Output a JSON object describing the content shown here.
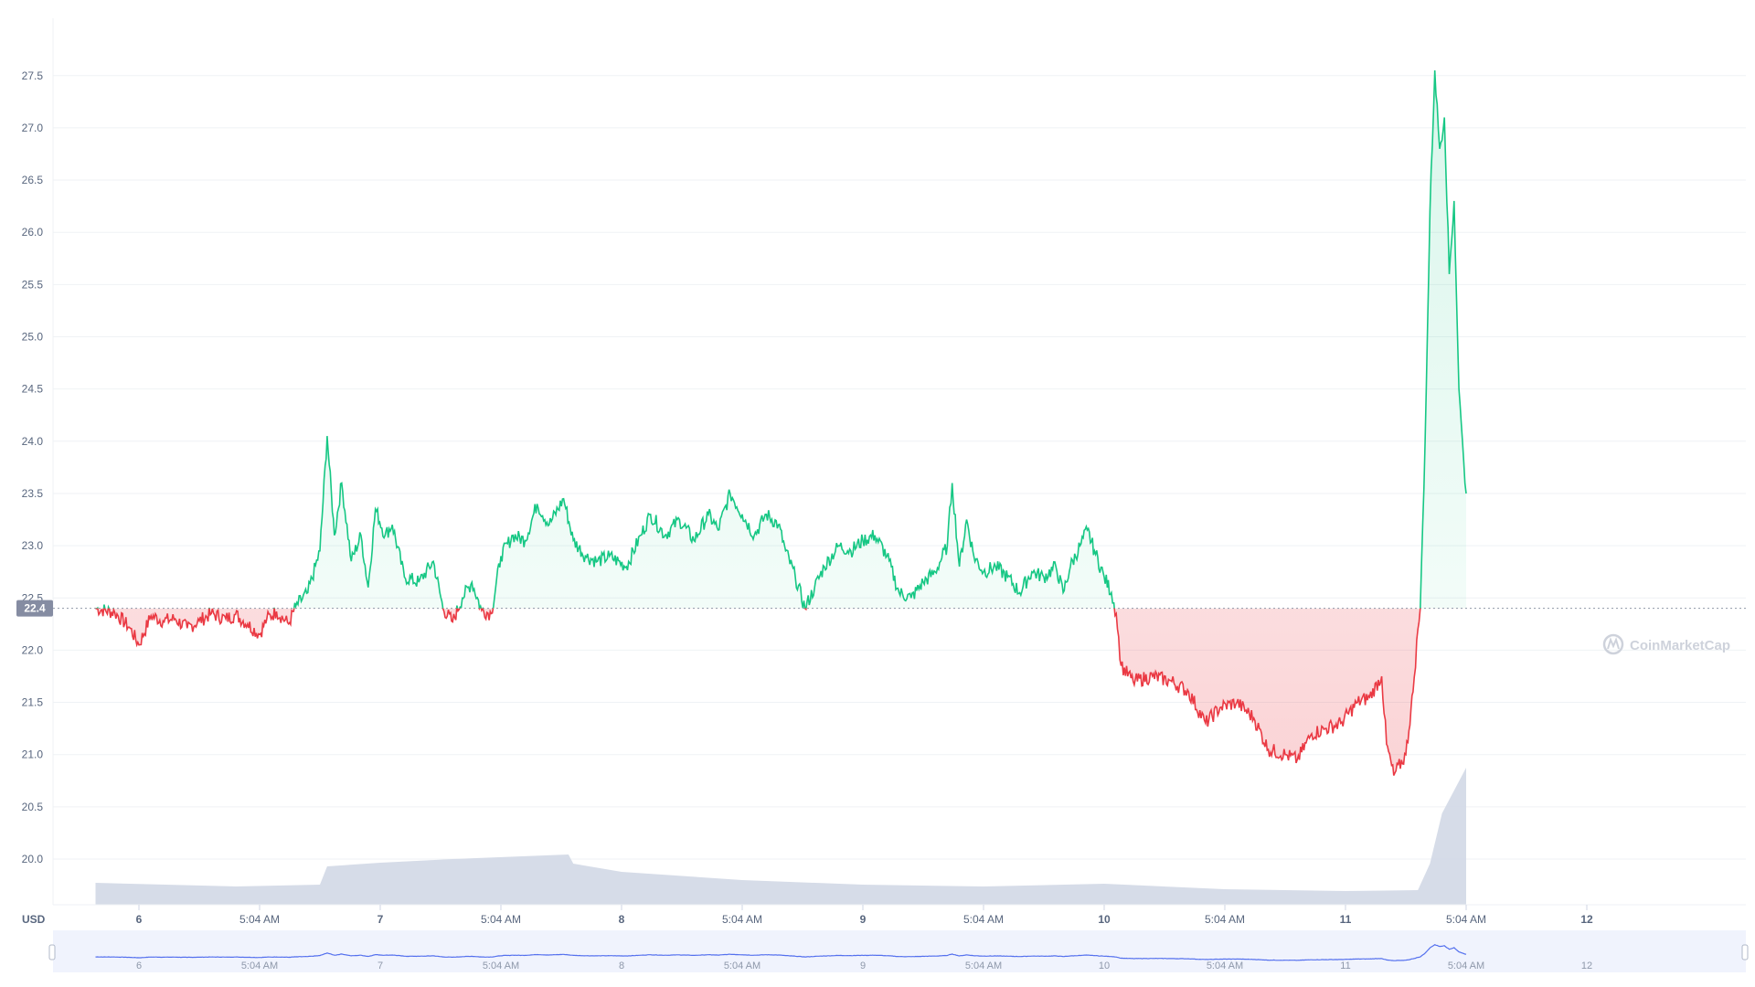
{
  "chart_data": {
    "type": "line",
    "ylabel": "USD",
    "ylim": [
      19.4,
      27.9
    ],
    "y_ticks": [
      "20.0",
      "20.5",
      "21.0",
      "21.5",
      "22.0",
      "22.5",
      "23.0",
      "23.5",
      "24.0",
      "24.5",
      "25.0",
      "25.5",
      "26.0",
      "26.5",
      "27.0",
      "27.5"
    ],
    "x_ticks": [
      {
        "label": "6",
        "kind": "day",
        "t": 0.5
      },
      {
        "label": "5:04 AM",
        "kind": "time",
        "t": 1.0
      },
      {
        "label": "7",
        "kind": "day",
        "t": 1.5
      },
      {
        "label": "5:04 AM",
        "kind": "time",
        "t": 2.0
      },
      {
        "label": "8",
        "kind": "day",
        "t": 2.5
      },
      {
        "label": "5:04 AM",
        "kind": "time",
        "t": 3.0
      },
      {
        "label": "9",
        "kind": "day",
        "t": 3.5
      },
      {
        "label": "5:04 AM",
        "kind": "time",
        "t": 4.0
      },
      {
        "label": "10",
        "kind": "day",
        "t": 4.5
      },
      {
        "label": "5:04 AM",
        "kind": "time",
        "t": 5.0
      },
      {
        "label": "11",
        "kind": "day",
        "t": 5.5
      },
      {
        "label": "5:04 AM",
        "kind": "time",
        "t": 6.0
      },
      {
        "label": "12",
        "kind": "day",
        "t": 6.5
      }
    ],
    "x_range": [
      0.32,
      7.0
    ],
    "baseline": {
      "value": 22.4,
      "label": "22.4"
    },
    "up_color": "#16c784",
    "down_color": "#ea3943",
    "volume_color": "#cfd6e4",
    "series": [
      {
        "points": [
          [
            0.32,
            22.4
          ],
          [
            0.4,
            22.36
          ],
          [
            0.46,
            22.22
          ],
          [
            0.5,
            22.05
          ],
          [
            0.55,
            22.33
          ],
          [
            0.6,
            22.28
          ],
          [
            0.65,
            22.3
          ],
          [
            0.7,
            22.21
          ],
          [
            0.75,
            22.28
          ],
          [
            0.8,
            22.35
          ],
          [
            0.86,
            22.3
          ],
          [
            0.9,
            22.34
          ],
          [
            0.95,
            22.25
          ],
          [
            1.0,
            22.15
          ],
          [
            1.03,
            22.3
          ],
          [
            1.07,
            22.37
          ],
          [
            1.12,
            22.25
          ],
          [
            1.15,
            22.42
          ],
          [
            1.2,
            22.55
          ],
          [
            1.25,
            22.95
          ],
          [
            1.28,
            24.05
          ],
          [
            1.31,
            23.1
          ],
          [
            1.34,
            23.6
          ],
          [
            1.38,
            22.85
          ],
          [
            1.42,
            23.1
          ],
          [
            1.45,
            22.6
          ],
          [
            1.48,
            23.35
          ],
          [
            1.52,
            23.1
          ],
          [
            1.55,
            23.2
          ],
          [
            1.6,
            22.7
          ],
          [
            1.66,
            22.65
          ],
          [
            1.72,
            22.85
          ],
          [
            1.76,
            22.4
          ],
          [
            1.8,
            22.27
          ],
          [
            1.84,
            22.5
          ],
          [
            1.88,
            22.65
          ],
          [
            1.92,
            22.38
          ],
          [
            1.96,
            22.35
          ],
          [
            2.0,
            22.9
          ],
          [
            2.05,
            23.1
          ],
          [
            2.1,
            23.05
          ],
          [
            2.15,
            23.4
          ],
          [
            2.2,
            23.2
          ],
          [
            2.26,
            23.45
          ],
          [
            2.3,
            23.05
          ],
          [
            2.35,
            22.9
          ],
          [
            2.4,
            22.85
          ],
          [
            2.45,
            22.9
          ],
          [
            2.52,
            22.8
          ],
          [
            2.58,
            23.1
          ],
          [
            2.62,
            23.3
          ],
          [
            2.68,
            23.1
          ],
          [
            2.74,
            23.25
          ],
          [
            2.8,
            23.05
          ],
          [
            2.86,
            23.3
          ],
          [
            2.9,
            23.15
          ],
          [
            2.95,
            23.5
          ],
          [
            3.0,
            23.3
          ],
          [
            3.05,
            23.1
          ],
          [
            3.1,
            23.3
          ],
          [
            3.15,
            23.2
          ],
          [
            3.18,
            22.95
          ],
          [
            3.22,
            22.7
          ],
          [
            3.26,
            22.4
          ],
          [
            3.3,
            22.6
          ],
          [
            3.34,
            22.8
          ],
          [
            3.4,
            23.0
          ],
          [
            3.45,
            22.95
          ],
          [
            3.5,
            23.05
          ],
          [
            3.55,
            23.1
          ],
          [
            3.6,
            22.9
          ],
          [
            3.65,
            22.55
          ],
          [
            3.7,
            22.5
          ],
          [
            3.75,
            22.65
          ],
          [
            3.8,
            22.75
          ],
          [
            3.85,
            23.0
          ],
          [
            3.87,
            23.6
          ],
          [
            3.9,
            22.8
          ],
          [
            3.93,
            23.25
          ],
          [
            3.96,
            22.9
          ],
          [
            4.0,
            22.75
          ],
          [
            4.05,
            22.8
          ],
          [
            4.1,
            22.7
          ],
          [
            4.15,
            22.55
          ],
          [
            4.2,
            22.75
          ],
          [
            4.25,
            22.7
          ],
          [
            4.3,
            22.8
          ],
          [
            4.33,
            22.55
          ],
          [
            4.36,
            22.8
          ],
          [
            4.4,
            23.0
          ],
          [
            4.43,
            23.15
          ],
          [
            4.46,
            22.95
          ],
          [
            4.5,
            22.7
          ],
          [
            4.53,
            22.55
          ],
          [
            4.55,
            22.35
          ],
          [
            4.57,
            21.85
          ],
          [
            4.62,
            21.7
          ],
          [
            4.7,
            21.75
          ],
          [
            4.78,
            21.7
          ],
          [
            4.85,
            21.6
          ],
          [
            4.92,
            21.3
          ],
          [
            4.98,
            21.45
          ],
          [
            5.05,
            21.5
          ],
          [
            5.12,
            21.35
          ],
          [
            5.18,
            21.05
          ],
          [
            5.25,
            21.0
          ],
          [
            5.3,
            20.95
          ],
          [
            5.36,
            21.2
          ],
          [
            5.42,
            21.25
          ],
          [
            5.48,
            21.3
          ],
          [
            5.55,
            21.5
          ],
          [
            5.6,
            21.55
          ],
          [
            5.65,
            21.75
          ],
          [
            5.67,
            21.1
          ],
          [
            5.7,
            20.8
          ],
          [
            5.75,
            21.0
          ],
          [
            5.78,
            21.6
          ],
          [
            5.8,
            22.2
          ],
          [
            5.81,
            22.4
          ],
          [
            5.83,
            24.0
          ],
          [
            5.85,
            26.2
          ],
          [
            5.87,
            27.55
          ],
          [
            5.89,
            26.8
          ],
          [
            5.91,
            27.1
          ],
          [
            5.93,
            25.6
          ],
          [
            5.95,
            26.3
          ],
          [
            5.97,
            24.5
          ],
          [
            5.99,
            23.8
          ],
          [
            6.0,
            23.5
          ]
        ]
      }
    ]
  },
  "watermark": "CoinMarketCap",
  "nav_labels": [
    "6",
    "5:04 AM",
    "7",
    "5:04 AM",
    "8",
    "5:04 AM",
    "9",
    "5:04 AM",
    "10",
    "5:04 AM",
    "11",
    "5:04 AM",
    "12"
  ]
}
